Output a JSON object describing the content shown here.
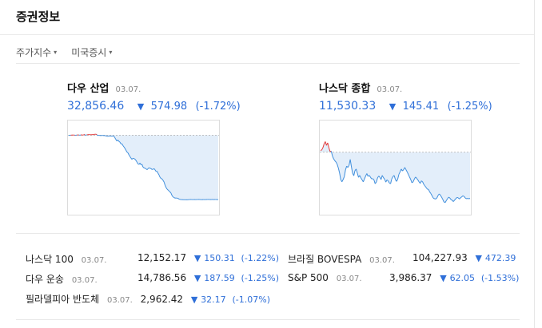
{
  "header": {
    "title": "증권정보"
  },
  "tabs": [
    {
      "label": "주가지수",
      "caret": "▾"
    },
    {
      "label": "미국증시",
      "caret": "▾"
    }
  ],
  "charts": [
    {
      "name": "다우 산업",
      "date": "03.07.",
      "value": "32,856.46",
      "arrow": "▼",
      "change": "574.98",
      "percent": "(-1.72%)",
      "line_color": "#3f8edc",
      "up_color": "#e33c3c",
      "fill_color": "#e3eefa",
      "series": [
        33430,
        33431,
        33432,
        33433,
        33433,
        33433,
        33432,
        33431,
        33433,
        33434,
        33434,
        33431,
        33434,
        33435,
        33432,
        33436,
        33437,
        33430,
        33435,
        33436,
        33437,
        33437,
        33435,
        33437,
        33436,
        33438,
        33440,
        33441,
        33436,
        33429,
        33431,
        33429,
        33428,
        33429,
        33430,
        33427,
        33429,
        33425,
        33423,
        33422,
        33425,
        33423,
        33424,
        33423,
        33425,
        33422,
        33409,
        33393,
        33379,
        33389,
        33376,
        33370,
        33354,
        33355,
        33339,
        33327,
        33314,
        33297,
        33281,
        33274,
        33256,
        33241,
        33227,
        33216,
        33225,
        33223,
        33217,
        33206,
        33191,
        33175,
        33170,
        33183,
        33167,
        33171,
        33147,
        33140,
        33136,
        33131,
        33123,
        33132,
        33140,
        33136,
        33133,
        33125,
        33127,
        33133,
        33122,
        33108,
        33109,
        33091,
        33076,
        33055,
        33045,
        33040,
        33028,
        33013,
        32985,
        32964,
        32950,
        32942,
        32932,
        32924,
        32913,
        32891,
        32880,
        32874,
        32869,
        32870,
        32869,
        32867,
        32860,
        32858,
        32856,
        32856,
        32855,
        32855,
        32854,
        32855,
        32854,
        32855,
        32856,
        32857,
        32857,
        32856,
        32856,
        32857,
        32856,
        32856,
        32857,
        32857,
        32858,
        32856,
        32856,
        32855,
        32857,
        32856,
        32856,
        32857,
        32857,
        32858,
        32857,
        32857,
        32856,
        32858,
        32856,
        32857,
        32857,
        32857,
        32856,
        32856
      ],
      "series_ref": 33431.44,
      "y_range": [
        32750,
        33520
      ]
    },
    {
      "name": "나스닥 종합",
      "date": "03.07.",
      "value": "11,530.33",
      "arrow": "▼",
      "change": "145.41",
      "percent": "(-1.25%)",
      "line_color": "#3f8edc",
      "up_color": "#e33c3c",
      "fill_color": "#e3eefa",
      "series": [
        11681,
        11683,
        11690,
        11702,
        11709,
        11697,
        11705,
        11690,
        11678,
        11679,
        11664,
        11655,
        11649,
        11645,
        11638,
        11626,
        11611,
        11590,
        11583,
        11590,
        11599,
        11620,
        11632,
        11628,
        11634,
        11653,
        11630,
        11610,
        11602,
        11618,
        11623,
        11610,
        11597,
        11603,
        11595,
        11589,
        11583,
        11592,
        11601,
        11609,
        11600,
        11603,
        11598,
        11592,
        11593,
        11589,
        11577,
        11582,
        11595,
        11601,
        11597,
        11590,
        11603,
        11596,
        11591,
        11582,
        11589,
        11586,
        11579,
        11577,
        11592,
        11599,
        11603,
        11591,
        11584,
        11591,
        11606,
        11614,
        11623,
        11617,
        11621,
        11628,
        11621,
        11614,
        11606,
        11598,
        11590,
        11580,
        11583,
        11591,
        11598,
        11594,
        11589,
        11583,
        11578,
        11586,
        11583,
        11575,
        11570,
        11565,
        11560,
        11559,
        11551,
        11546,
        11539,
        11532,
        11530,
        11529,
        11532,
        11540,
        11545,
        11541,
        11535,
        11528,
        11520,
        11518,
        11524,
        11530,
        11535,
        11532,
        11527,
        11525,
        11521,
        11526,
        11530,
        11534,
        11533,
        11529,
        11533,
        11536,
        11539,
        11537,
        11532,
        11530,
        11531,
        11530,
        11531
      ],
      "series_ref": 11675.74,
      "y_range": [
        11490,
        11760
      ]
    }
  ],
  "indices_left": [
    {
      "name": "나스닥 100",
      "date": "03.07.",
      "value": "12,152.17",
      "arrow": "▼",
      "change": "150.31",
      "percent": "(-1.22%)"
    },
    {
      "name": "다우 운송",
      "date": "03.07.",
      "value": "14,786.56",
      "arrow": "▼",
      "change": "187.59",
      "percent": "(-1.25%)"
    },
    {
      "name": "필라델피아 반도체",
      "date": "03.07.",
      "value": "2,962.42",
      "arrow": "▼",
      "change": "32.17",
      "percent": "(-1.07%)"
    }
  ],
  "indices_right": [
    {
      "name": "브라질 BOVESPA",
      "date": "03.07.",
      "value": "104,227.93",
      "arrow": "▼",
      "change": "472.39",
      "percent": ""
    },
    {
      "name": "S&P 500",
      "date": "03.07.",
      "value": "3,986.37",
      "arrow": "▼",
      "change": "62.05",
      "percent": "(-1.53%)"
    }
  ]
}
